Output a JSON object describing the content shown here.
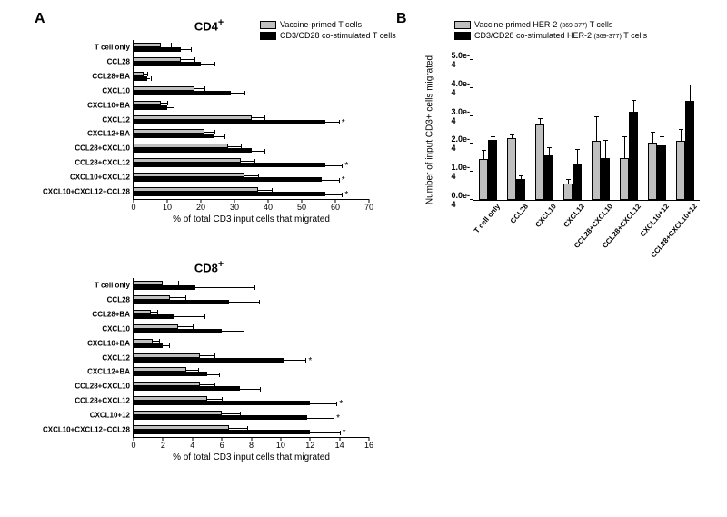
{
  "panelA_letter": "A",
  "panelB_letter": "B",
  "colors": {
    "vaccine": "#bfbfbf",
    "cd3cd28": "#000000",
    "axis": "#000000",
    "bg": "#ffffff"
  },
  "legendA": {
    "vaccine": "Vaccine-primed T cells",
    "cd3cd28": "CD3/CD28 co-stimulated T cells"
  },
  "legendB": {
    "vaccine_pre": "Vaccine-primed HER-2 ",
    "vaccine_sub": "(369-377)",
    "vaccine_post": " T cells",
    "cd3_pre": "CD3/CD28 co-stimulated HER-2 ",
    "cd3_sub": "(369-377)",
    "cd3_post": " T cells"
  },
  "cd4": {
    "title": "CD4",
    "sup": "+",
    "xlabel": "% of total CD3 input cells that migrated",
    "xmax": 70,
    "xtick_step": 10,
    "categories": [
      "T cell only",
      "CCL28",
      "CCL28+BA",
      "CXCL10",
      "CXCL10+BA",
      "CXCL12",
      "CXCL12+BA",
      "CCL28+CXCL10",
      "CCL28+CXCL12",
      "CXCL10+CXCL12",
      "CXCL10+CXCL12+CCL28"
    ],
    "vaccine": [
      8,
      14,
      3,
      18,
      8,
      35,
      21,
      28,
      32,
      33,
      37
    ],
    "cd3cd28": [
      14,
      20,
      4,
      29,
      10,
      57,
      24,
      35,
      57,
      56,
      57
    ],
    "err_v": [
      3,
      4,
      1,
      3,
      2,
      4,
      3,
      4,
      4,
      4,
      4
    ],
    "err_c": [
      3,
      4,
      1,
      4,
      2,
      4,
      3,
      4,
      5,
      5,
      5
    ],
    "sig": [
      false,
      false,
      false,
      false,
      false,
      true,
      false,
      false,
      true,
      true,
      true
    ]
  },
  "cd8": {
    "title": "CD8",
    "sup": "+",
    "xlabel": "% of total CD3 input cells that migrated",
    "xmax": 16,
    "xtick_step": 2,
    "categories": [
      "T cell only",
      "CCL28",
      "CCL28+BA",
      "CXCL10",
      "CXCL10+BA",
      "CXCL12",
      "CXCL12+BA",
      "CCL28+CXCL10",
      "CCL28+CXCL12",
      "CXCL10+12",
      "CXCL10+CXCL12+CCL28"
    ],
    "vaccine": [
      2.0,
      2.5,
      1.2,
      3.0,
      1.3,
      4.5,
      3.6,
      4.5,
      5.0,
      6.0,
      6.5
    ],
    "cd3cd28": [
      4.2,
      6.5,
      2.8,
      6.0,
      2.0,
      10.2,
      5.0,
      7.2,
      12.0,
      11.8,
      12.0
    ],
    "err_v": [
      1.0,
      1.0,
      0.4,
      1.0,
      0.4,
      1.0,
      0.8,
      1.0,
      1.0,
      1.2,
      1.2
    ],
    "err_c": [
      4.0,
      2.0,
      2.0,
      1.5,
      0.4,
      1.5,
      0.8,
      1.4,
      1.8,
      1.8,
      2.0
    ],
    "sig": [
      false,
      false,
      false,
      false,
      false,
      true,
      false,
      false,
      true,
      true,
      true
    ]
  },
  "panelB": {
    "ylabel": "Number of input CD3+ cells migrated",
    "ymax": 5.0,
    "ytick_step": 1.0,
    "ylabel_suffix": "e-4",
    "categories": [
      "T cell only",
      "CCL28",
      "CXCL10",
      "CXCL12",
      "CCL28+CXCL10",
      "CCL28+CXCL12",
      "CXCL10+12",
      "CCL28+CXCL10+12"
    ],
    "vaccine": [
      1.45,
      2.2,
      2.7,
      0.6,
      2.1,
      1.5,
      2.05,
      2.1
    ],
    "cd3cd28": [
      2.15,
      0.75,
      1.6,
      1.3,
      1.5,
      3.15,
      1.95,
      3.55
    ],
    "err_v": [
      0.3,
      0.1,
      0.2,
      0.1,
      0.85,
      0.75,
      0.35,
      0.4
    ],
    "err_c": [
      0.1,
      0.1,
      0.25,
      0.5,
      0.6,
      0.4,
      0.3,
      0.55
    ]
  }
}
